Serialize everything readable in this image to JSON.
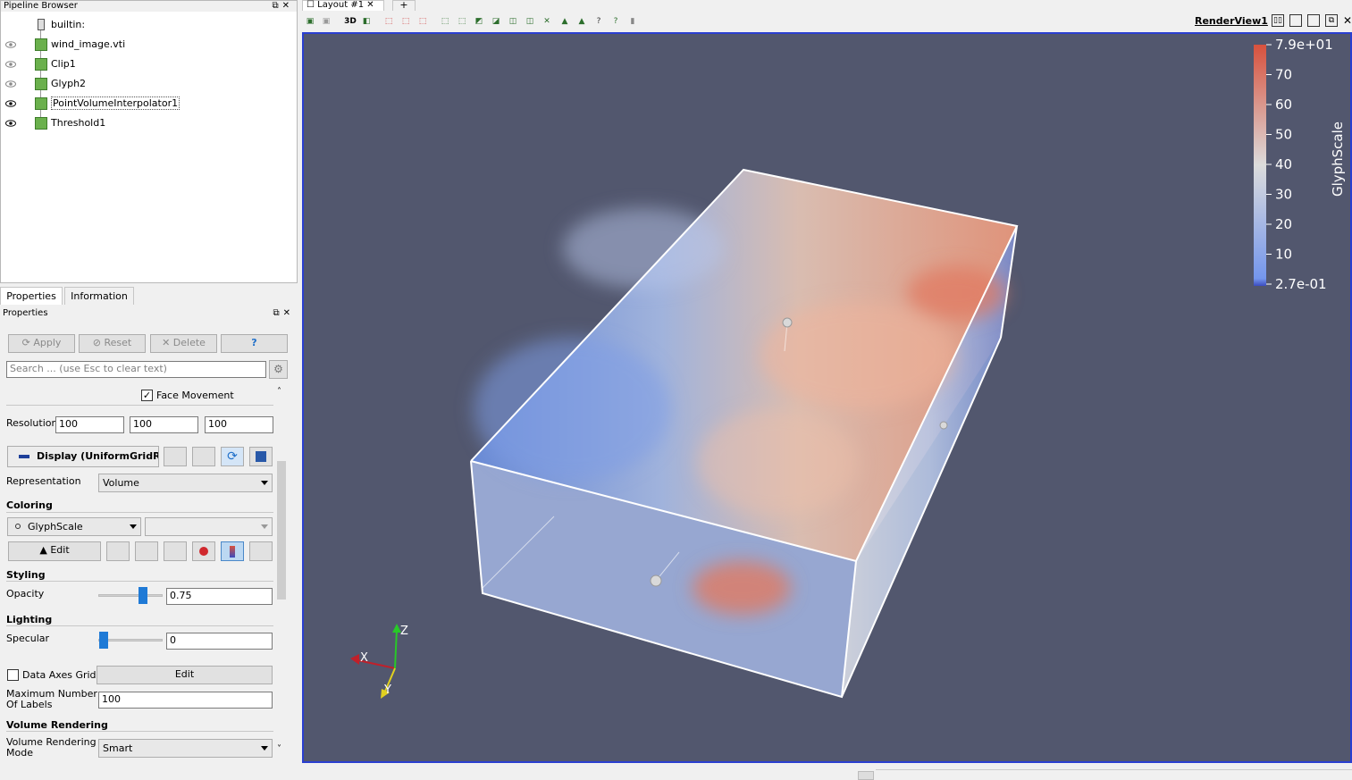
{
  "pipeline": {
    "title": "Pipeline Browser",
    "items": [
      {
        "label": "builtin:",
        "icon": "server-icon"
      },
      {
        "label": "wind_image.vti",
        "icon": "dataset-cube-icon"
      },
      {
        "label": "Clip1",
        "icon": "dataset-cube-icon"
      },
      {
        "label": "Glyph2",
        "icon": "dataset-cube-icon"
      },
      {
        "label": "PointVolumeInterpolator1",
        "icon": "dataset-cube-icon"
      },
      {
        "label": "Threshold1",
        "icon": "dataset-cube-icon"
      }
    ]
  },
  "tabs": {
    "properties": "Properties",
    "information": "Information"
  },
  "properties": {
    "title": "Properties",
    "apply": "Apply",
    "reset": "Reset",
    "delete": "Delete",
    "help": "?",
    "search_placeholder": "Search ... (use Esc to clear text)",
    "face_movement": "Face Movement",
    "resolution_label": "Resolution",
    "resolution": [
      "100",
      "100",
      "100"
    ],
    "display_header": "Display (UniformGridRe",
    "representation_label": "Representation",
    "representation": "Volume",
    "coloring_section": "Coloring",
    "coloring_array": "GlyphScale",
    "edit": "Edit",
    "styling_section": "Styling",
    "opacity_label": "Opacity",
    "opacity": "0.75",
    "lighting_section": "Lighting",
    "specular_label": "Specular",
    "specular": "0",
    "data_axes_grid": "Data Axes Grid",
    "data_axes_edit": "Edit",
    "max_labels_label": "Maximum Number Of Labels",
    "max_labels": "100",
    "volume_rendering_section": "Volume Rendering",
    "volume_mode_label": "Volume Rendering Mode",
    "volume_mode": "Smart"
  },
  "layout": {
    "tab": "Layout #1",
    "add_tab": "+",
    "view_3d": "3D",
    "render_view": "RenderView1"
  },
  "colorbar": {
    "title": "GlyphScale",
    "labels": [
      "7.9e+01",
      "70",
      "60",
      "50",
      "40",
      "30",
      "20",
      "10",
      "2.7e-01"
    ],
    "colors": {
      "high": "#d8513d",
      "mid": "#dcdcdc",
      "low": "#3b4cc0"
    }
  },
  "axes": {
    "x": "X",
    "y": "Y",
    "z": "Z"
  },
  "colors": {
    "background": "#52576e",
    "frame": "#2a3fd0"
  }
}
